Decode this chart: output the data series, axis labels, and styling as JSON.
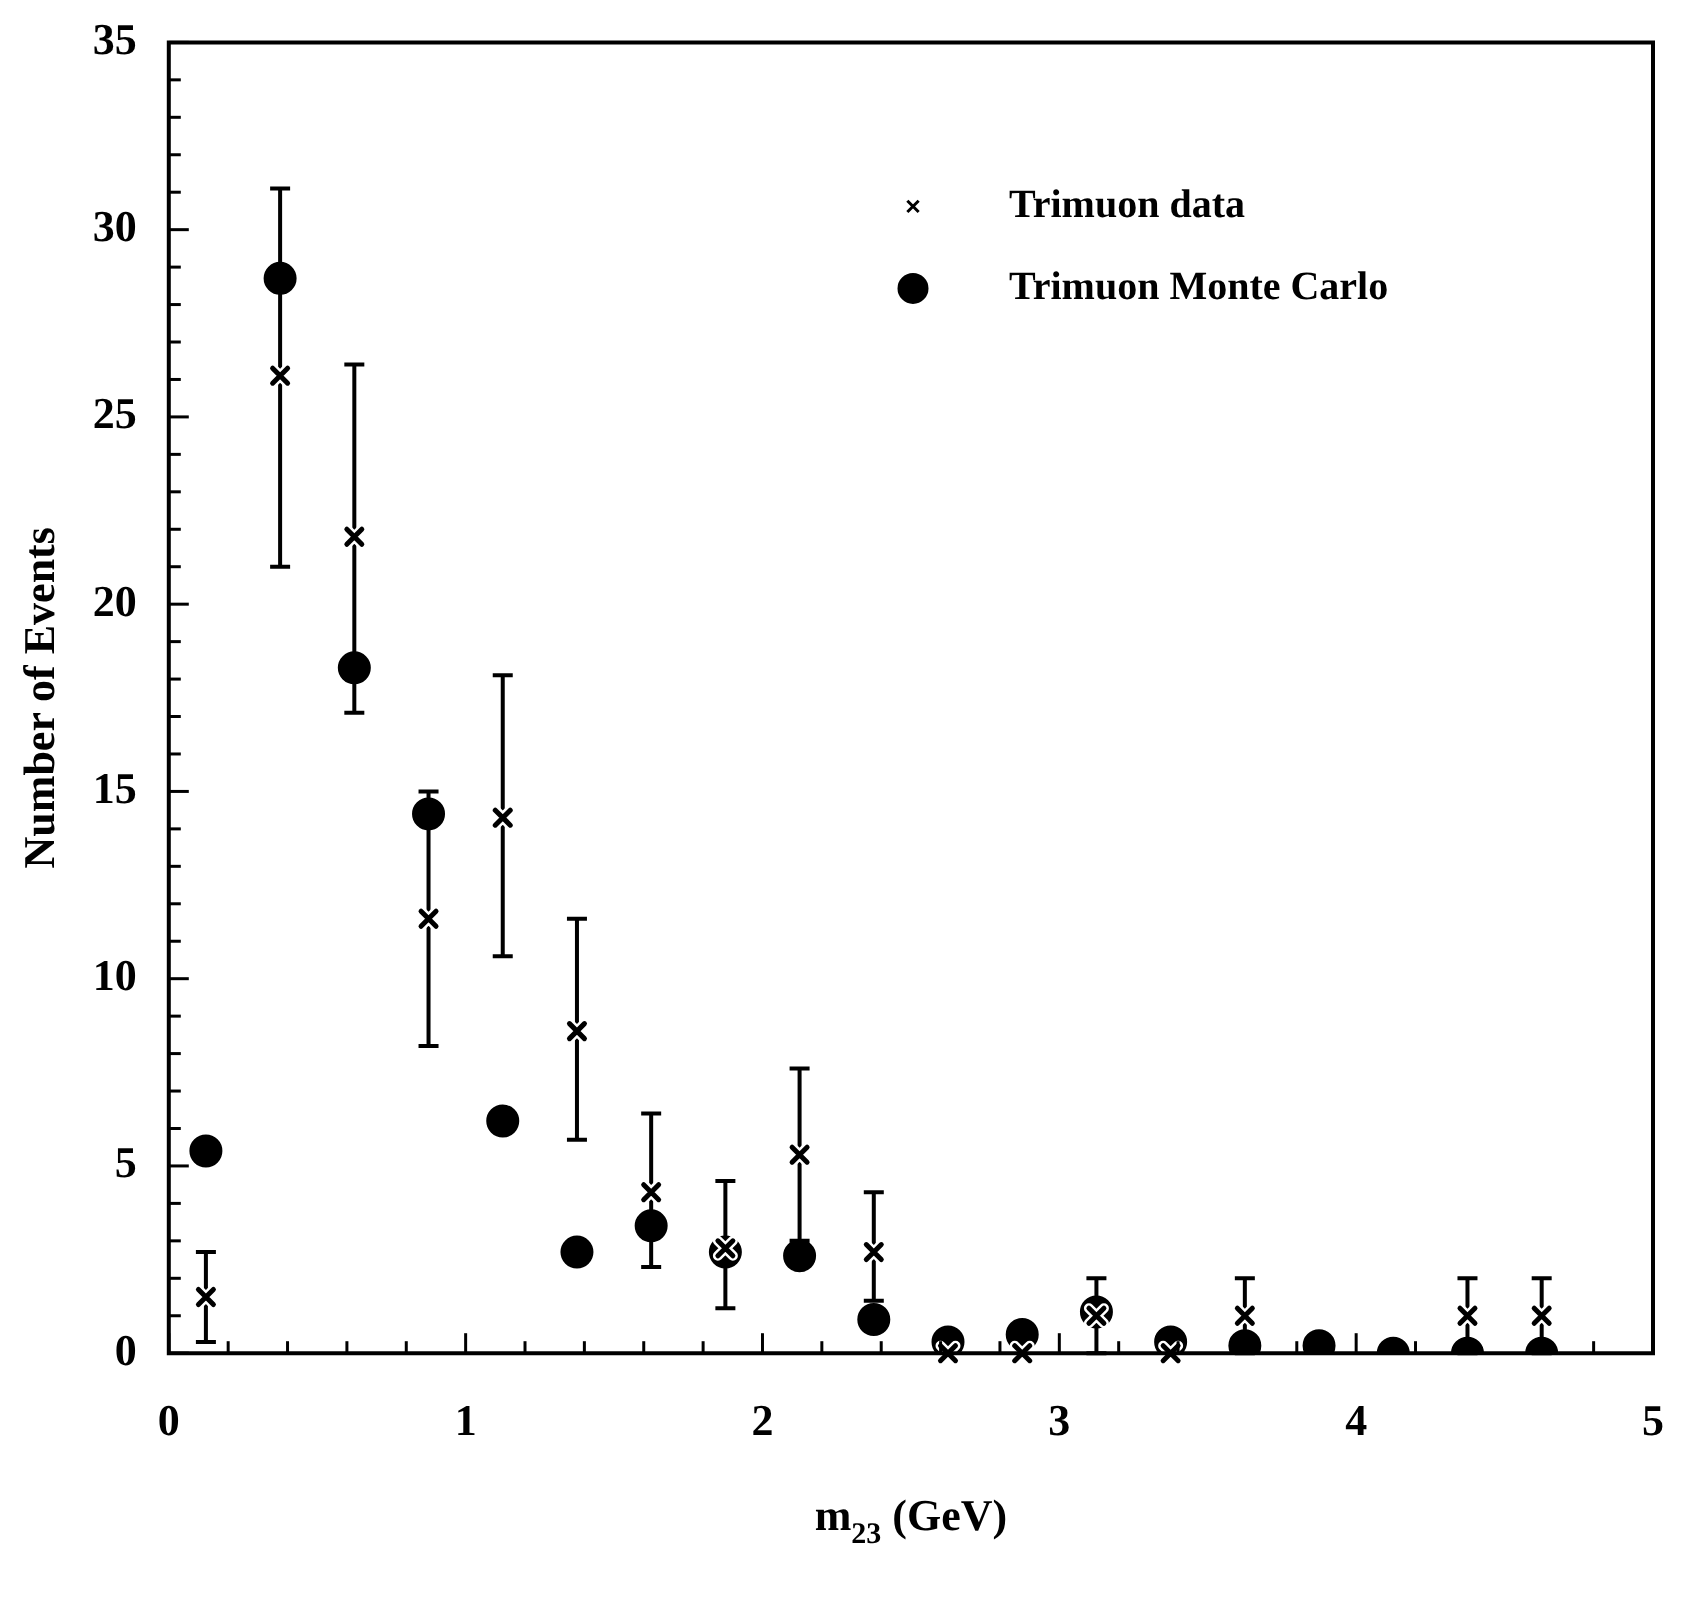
{
  "chart_data": {
    "type": "scatter",
    "xlabel": "m$_{23}$ (GeV)",
    "ylabel": "Number of Events",
    "xlim": [
      0,
      5
    ],
    "ylim": [
      0,
      35
    ],
    "xticks": [
      0,
      {
        "value": 0.2,
        "label": null
      },
      {
        "value": 0.4,
        "label": null
      },
      {
        "value": 0.6,
        "label": null
      },
      {
        "value": 0.8,
        "label": null
      },
      1,
      {
        "value": 1.2,
        "label": null
      },
      {
        "value": 1.4,
        "label": null
      },
      {
        "value": 1.6,
        "label": null
      },
      {
        "value": 1.8,
        "label": null
      },
      2,
      {
        "value": 2.2,
        "label": null
      },
      {
        "value": 2.4,
        "label": null
      },
      {
        "value": 2.6,
        "label": null
      },
      {
        "value": 2.8,
        "label": null
      },
      3,
      {
        "value": 3.2,
        "label": null
      },
      {
        "value": 3.4,
        "label": null
      },
      {
        "value": 3.6,
        "label": null
      },
      {
        "value": 3.8,
        "label": null
      },
      4,
      {
        "value": 4.2,
        "label": null
      },
      {
        "value": 4.4,
        "label": null
      },
      {
        "value": 4.6,
        "label": null
      },
      {
        "value": 4.8,
        "label": null
      },
      5
    ],
    "yticks": [
      0,
      {
        "value": 1,
        "label": null
      },
      {
        "value": 2,
        "label": null
      },
      {
        "value": 3,
        "label": null
      },
      {
        "value": 4,
        "label": null
      },
      5,
      {
        "value": 6,
        "label": null
      },
      {
        "value": 7,
        "label": null
      },
      {
        "value": 8,
        "label": null
      },
      {
        "value": 9,
        "label": null
      },
      10,
      {
        "value": 11,
        "label": null
      },
      {
        "value": 12,
        "label": null
      },
      {
        "value": 13,
        "label": null
      },
      {
        "value": 14,
        "label": null
      },
      15,
      {
        "value": 16,
        "label": null
      },
      {
        "value": 17,
        "label": null
      },
      {
        "value": 18,
        "label": null
      },
      {
        "value": 19,
        "label": null
      },
      20,
      {
        "value": 21,
        "label": null
      },
      {
        "value": 22,
        "label": null
      },
      {
        "value": 23,
        "label": null
      },
      {
        "value": 24,
        "label": null
      },
      25,
      {
        "value": 26,
        "label": null
      },
      {
        "value": 27,
        "label": null
      },
      {
        "value": 28,
        "label": null
      },
      {
        "value": 29,
        "label": null
      },
      30,
      {
        "value": 31,
        "label": null
      },
      {
        "value": 32,
        "label": null
      },
      {
        "value": 33,
        "label": null
      },
      {
        "value": 34,
        "label": null
      },
      35
    ],
    "grid": false,
    "legend": "top right",
    "x": [
      0.125,
      0.375,
      0.625,
      0.875,
      1.125,
      1.375,
      1.625,
      1.875,
      2.125,
      2.375,
      2.625,
      2.875,
      3.125,
      3.375,
      3.625,
      3.875,
      4.125,
      4.375,
      4.625
    ],
    "series": [
      {
        "name": "Trimuon data",
        "color": "#000000",
        "marker": "cross",
        "values": [
          1.5,
          26.1,
          21.8,
          11.6,
          14.3,
          8.6,
          4.3,
          2.8,
          5.3,
          2.7,
          0,
          0,
          1.0,
          0,
          1.0,
          null,
          null,
          1.0,
          1.0
        ],
        "errors": [
          [
            0.3,
            2.7
          ],
          [
            21.0,
            31.1
          ],
          [
            17.1,
            26.4
          ],
          [
            8.2,
            15.0
          ],
          [
            10.6,
            18.1
          ],
          [
            5.7,
            11.6
          ],
          [
            2.3,
            6.4
          ],
          [
            1.2,
            4.6
          ],
          [
            3.0,
            7.6
          ],
          [
            1.4,
            4.3
          ],
          null,
          null,
          [
            0,
            2.0
          ],
          null,
          [
            0,
            2.0
          ],
          null,
          null,
          [
            0,
            2.0
          ],
          [
            0,
            2.0
          ]
        ]
      },
      {
        "name": "Trimuon Monte Carlo",
        "color": "#000000",
        "marker": "circle",
        "values": [
          5.4,
          28.7,
          18.3,
          14.4,
          6.2,
          2.7,
          3.4,
          2.7,
          2.6,
          0.9,
          0.3,
          0.5,
          1.1,
          0.3,
          0.2,
          0.2,
          0,
          0,
          0
        ]
      }
    ]
  }
}
